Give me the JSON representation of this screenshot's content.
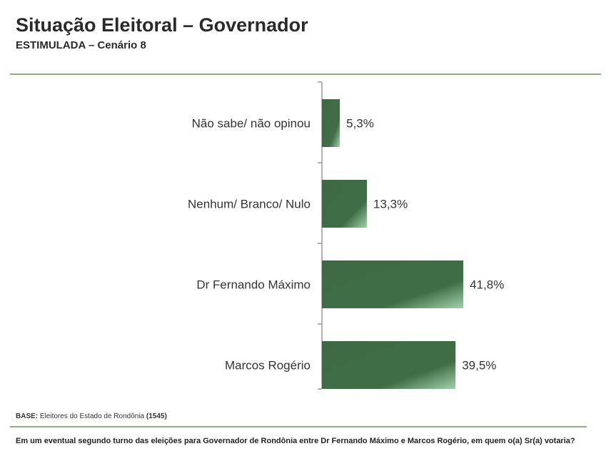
{
  "header": {
    "title": "Situação Eleitoral – Governador",
    "subtitle": "ESTIMULADA – Cenário 8"
  },
  "chart_data": {
    "type": "bar",
    "orientation": "horizontal",
    "categories": [
      "Não sabe/ não opinou",
      "Nenhum/ Branco/ Nulo",
      "Dr Fernando Máximo",
      "Marcos Rogério"
    ],
    "values": [
      5.3,
      13.3,
      41.8,
      39.5
    ],
    "data_labels": [
      "5,3%",
      "13,3%",
      "41,8%",
      "39,5%"
    ],
    "unit": "%",
    "grid": false,
    "bar_color": "#3f6b44",
    "bar_highlight": "#9ccaa4"
  },
  "footer": {
    "base_label": "BASE:",
    "base_text": "Eleitores do Estado de Rondônia",
    "base_count": "(1545)",
    "question": "Em um eventual segundo turno das eleições para Governador de Rondônia entre Dr Fernando Máximo e Marcos Rogério, em quem o(a) Sr(a) votaria?"
  }
}
